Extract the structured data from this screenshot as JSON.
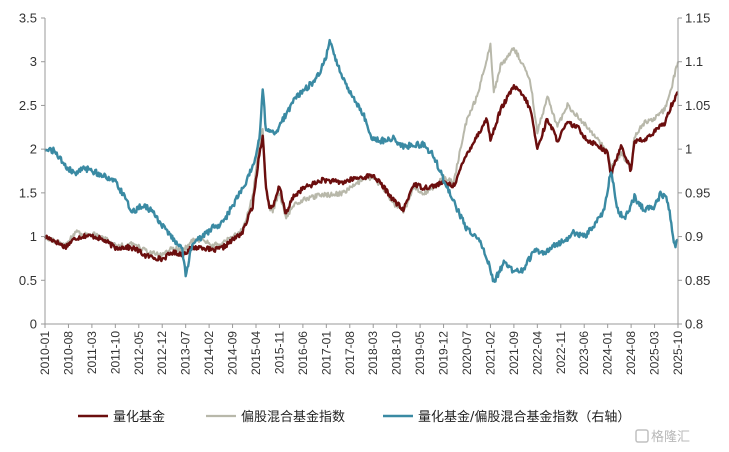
{
  "chart_data": {
    "type": "line",
    "title": "",
    "xlabel": "",
    "ylabel": "",
    "y_left": {
      "min": 0,
      "max": 3.5,
      "ticks": [
        "0",
        "0.5",
        "1",
        "1.5",
        "2",
        "2.5",
        "3",
        "3.5"
      ]
    },
    "y_right": {
      "min": 0.8,
      "max": 1.15,
      "ticks": [
        "0.8",
        "0.85",
        "0.9",
        "0.95",
        "1",
        "1.05",
        "1.1",
        "1.15"
      ]
    },
    "x_ticks": [
      "2010-01",
      "2010-08",
      "2011-03",
      "2011-10",
      "2012-05",
      "2012-12",
      "2013-07",
      "2014-02",
      "2014-09",
      "2015-04",
      "2015-11",
      "2016-06",
      "2017-01",
      "2017-08",
      "2018-03",
      "2018-10",
      "2019-05",
      "2019-12",
      "2020-07",
      "2021-02",
      "2021-09",
      "2022-04",
      "2022-11",
      "2023-06",
      "2024-01",
      "2024-08",
      "2025-03",
      "2025-10"
    ],
    "grid": false,
    "legend_position": "bottom",
    "series": [
      {
        "name": "量化基金",
        "axis": "left",
        "color": "#6b0e0e",
        "points": [
          [
            "2010-01",
            1.0
          ],
          [
            "2010-04",
            0.95
          ],
          [
            "2010-07",
            0.88
          ],
          [
            "2010-10",
            0.98
          ],
          [
            "2011-01",
            1.01
          ],
          [
            "2011-04",
            1.0
          ],
          [
            "2011-07",
            0.95
          ],
          [
            "2011-10",
            0.87
          ],
          [
            "2012-01",
            0.88
          ],
          [
            "2012-04",
            0.86
          ],
          [
            "2012-07",
            0.78
          ],
          [
            "2012-10",
            0.76
          ],
          [
            "2012-12",
            0.74
          ],
          [
            "2013-03",
            0.82
          ],
          [
            "2013-06",
            0.8
          ],
          [
            "2013-09",
            0.87
          ],
          [
            "2013-12",
            0.88
          ],
          [
            "2014-03",
            0.84
          ],
          [
            "2014-06",
            0.87
          ],
          [
            "2014-09",
            0.96
          ],
          [
            "2014-12",
            1.05
          ],
          [
            "2015-03",
            1.35
          ],
          [
            "2015-05",
            1.95
          ],
          [
            "2015-06",
            2.15
          ],
          [
            "2015-07",
            1.55
          ],
          [
            "2015-08",
            1.35
          ],
          [
            "2015-09",
            1.32
          ],
          [
            "2015-11",
            1.58
          ],
          [
            "2016-01",
            1.25
          ],
          [
            "2016-03",
            1.45
          ],
          [
            "2016-06",
            1.55
          ],
          [
            "2016-09",
            1.6
          ],
          [
            "2016-12",
            1.65
          ],
          [
            "2017-03",
            1.63
          ],
          [
            "2017-06",
            1.62
          ],
          [
            "2017-09",
            1.66
          ],
          [
            "2017-12",
            1.68
          ],
          [
            "2018-03",
            1.7
          ],
          [
            "2018-06",
            1.57
          ],
          [
            "2018-09",
            1.42
          ],
          [
            "2018-12",
            1.3
          ],
          [
            "2019-03",
            1.6
          ],
          [
            "2019-06",
            1.56
          ],
          [
            "2019-09",
            1.58
          ],
          [
            "2019-12",
            1.62
          ],
          [
            "2020-03",
            1.58
          ],
          [
            "2020-07",
            1.95
          ],
          [
            "2020-10",
            2.15
          ],
          [
            "2021-01",
            2.35
          ],
          [
            "2021-02",
            2.1
          ],
          [
            "2021-05",
            2.45
          ],
          [
            "2021-08",
            2.65
          ],
          [
            "2021-09",
            2.72
          ],
          [
            "2021-12",
            2.6
          ],
          [
            "2022-02",
            2.45
          ],
          [
            "2022-04",
            2.0
          ],
          [
            "2022-07",
            2.35
          ],
          [
            "2022-10",
            2.1
          ],
          [
            "2023-01",
            2.3
          ],
          [
            "2023-04",
            2.25
          ],
          [
            "2023-07",
            2.1
          ],
          [
            "2023-10",
            2.05
          ],
          [
            "2024-01",
            1.95
          ],
          [
            "2024-02",
            1.7
          ],
          [
            "2024-05",
            2.05
          ],
          [
            "2024-08",
            1.75
          ],
          [
            "2024-09",
            2.1
          ],
          [
            "2024-12",
            2.1
          ],
          [
            "2025-03",
            2.2
          ],
          [
            "2025-06",
            2.3
          ],
          [
            "2025-08",
            2.5
          ],
          [
            "2025-10",
            2.65
          ]
        ]
      },
      {
        "name": "偏股混合基金指数",
        "axis": "left",
        "color": "#b8b8aa",
        "points": [
          [
            "2010-01",
            1.0
          ],
          [
            "2010-04",
            0.95
          ],
          [
            "2010-07",
            0.9
          ],
          [
            "2010-10",
            1.05
          ],
          [
            "2011-01",
            1.02
          ],
          [
            "2011-04",
            1.03
          ],
          [
            "2011-07",
            0.98
          ],
          [
            "2011-10",
            0.9
          ],
          [
            "2012-01",
            0.9
          ],
          [
            "2012-04",
            0.92
          ],
          [
            "2012-07",
            0.84
          ],
          [
            "2012-10",
            0.8
          ],
          [
            "2012-12",
            0.79
          ],
          [
            "2013-03",
            0.88
          ],
          [
            "2013-06",
            0.83
          ],
          [
            "2013-09",
            0.95
          ],
          [
            "2013-12",
            0.97
          ],
          [
            "2014-03",
            0.9
          ],
          [
            "2014-06",
            0.92
          ],
          [
            "2014-09",
            1.0
          ],
          [
            "2014-12",
            1.08
          ],
          [
            "2015-03",
            1.45
          ],
          [
            "2015-05",
            2.05
          ],
          [
            "2015-06",
            2.25
          ],
          [
            "2015-07",
            1.55
          ],
          [
            "2015-08",
            1.33
          ],
          [
            "2015-09",
            1.3
          ],
          [
            "2015-11",
            1.5
          ],
          [
            "2016-01",
            1.22
          ],
          [
            "2016-03",
            1.35
          ],
          [
            "2016-06",
            1.42
          ],
          [
            "2016-09",
            1.45
          ],
          [
            "2016-12",
            1.48
          ],
          [
            "2017-03",
            1.48
          ],
          [
            "2017-06",
            1.5
          ],
          [
            "2017-09",
            1.58
          ],
          [
            "2017-12",
            1.65
          ],
          [
            "2018-03",
            1.68
          ],
          [
            "2018-06",
            1.55
          ],
          [
            "2018-09",
            1.38
          ],
          [
            "2018-12",
            1.28
          ],
          [
            "2019-03",
            1.55
          ],
          [
            "2019-06",
            1.5
          ],
          [
            "2019-09",
            1.55
          ],
          [
            "2019-12",
            1.68
          ],
          [
            "2020-03",
            1.62
          ],
          [
            "2020-07",
            2.35
          ],
          [
            "2020-10",
            2.6
          ],
          [
            "2021-01",
            3.05
          ],
          [
            "2021-02",
            3.2
          ],
          [
            "2021-03",
            2.65
          ],
          [
            "2021-05",
            2.95
          ],
          [
            "2021-08",
            3.1
          ],
          [
            "2021-09",
            3.15
          ],
          [
            "2021-12",
            2.95
          ],
          [
            "2022-02",
            2.75
          ],
          [
            "2022-04",
            2.2
          ],
          [
            "2022-07",
            2.6
          ],
          [
            "2022-10",
            2.25
          ],
          [
            "2023-01",
            2.5
          ],
          [
            "2023-04",
            2.38
          ],
          [
            "2023-07",
            2.25
          ],
          [
            "2023-10",
            2.12
          ],
          [
            "2024-01",
            1.95
          ],
          [
            "2024-02",
            1.78
          ],
          [
            "2024-05",
            1.95
          ],
          [
            "2024-08",
            1.8
          ],
          [
            "2024-09",
            2.15
          ],
          [
            "2024-12",
            2.3
          ],
          [
            "2025-03",
            2.35
          ],
          [
            "2025-06",
            2.45
          ],
          [
            "2025-08",
            2.7
          ],
          [
            "2025-10",
            3.0
          ]
        ]
      },
      {
        "name": "量化基金/偏股混合基金指数（右轴）",
        "axis": "right",
        "color": "#3a8aa3",
        "points": [
          [
            "2010-01",
            1.0
          ],
          [
            "2010-04",
            0.998
          ],
          [
            "2010-07",
            0.98
          ],
          [
            "2010-10",
            0.972
          ],
          [
            "2011-01",
            0.978
          ],
          [
            "2011-04",
            0.974
          ],
          [
            "2011-07",
            0.968
          ],
          [
            "2011-10",
            0.962
          ],
          [
            "2011-12",
            0.95
          ],
          [
            "2012-03",
            0.928
          ],
          [
            "2012-06",
            0.935
          ],
          [
            "2012-09",
            0.93
          ],
          [
            "2012-12",
            0.912
          ],
          [
            "2013-03",
            0.898
          ],
          [
            "2013-06",
            0.885
          ],
          [
            "2013-07",
            0.855
          ],
          [
            "2013-09",
            0.892
          ],
          [
            "2013-12",
            0.9
          ],
          [
            "2014-03",
            0.91
          ],
          [
            "2014-06",
            0.915
          ],
          [
            "2014-09",
            0.935
          ],
          [
            "2014-12",
            0.955
          ],
          [
            "2015-03",
            0.98
          ],
          [
            "2015-05",
            1.01
          ],
          [
            "2015-06",
            1.07
          ],
          [
            "2015-07",
            1.02
          ],
          [
            "2015-10",
            1.02
          ],
          [
            "2016-01",
            1.04
          ],
          [
            "2016-04",
            1.06
          ],
          [
            "2016-07",
            1.07
          ],
          [
            "2016-10",
            1.08
          ],
          [
            "2017-01",
            1.105
          ],
          [
            "2017-02",
            1.125
          ],
          [
            "2017-04",
            1.1
          ],
          [
            "2017-06",
            1.08
          ],
          [
            "2017-09",
            1.06
          ],
          [
            "2017-12",
            1.04
          ],
          [
            "2018-03",
            1.01
          ],
          [
            "2018-06",
            1.01
          ],
          [
            "2018-09",
            1.012
          ],
          [
            "2018-12",
            1.002
          ],
          [
            "2019-03",
            1.005
          ],
          [
            "2019-06",
            1.005
          ],
          [
            "2019-09",
            0.993
          ],
          [
            "2019-12",
            0.965
          ],
          [
            "2020-03",
            0.94
          ],
          [
            "2020-07",
            0.908
          ],
          [
            "2020-10",
            0.9
          ],
          [
            "2021-01",
            0.875
          ],
          [
            "2021-03",
            0.848
          ],
          [
            "2021-06",
            0.87
          ],
          [
            "2021-09",
            0.86
          ],
          [
            "2021-12",
            0.862
          ],
          [
            "2022-03",
            0.885
          ],
          [
            "2022-06",
            0.88
          ],
          [
            "2022-09",
            0.89
          ],
          [
            "2022-12",
            0.895
          ],
          [
            "2023-03",
            0.905
          ],
          [
            "2023-06",
            0.9
          ],
          [
            "2023-09",
            0.912
          ],
          [
            "2023-12",
            0.93
          ],
          [
            "2024-01",
            0.955
          ],
          [
            "2024-02",
            0.975
          ],
          [
            "2024-04",
            0.93
          ],
          [
            "2024-06",
            0.92
          ],
          [
            "2024-09",
            0.945
          ],
          [
            "2024-12",
            0.93
          ],
          [
            "2025-03",
            0.935
          ],
          [
            "2025-05",
            0.95
          ],
          [
            "2025-07",
            0.94
          ],
          [
            "2025-09",
            0.89
          ],
          [
            "2025-10",
            0.895
          ]
        ]
      }
    ]
  },
  "watermark": "格隆汇"
}
